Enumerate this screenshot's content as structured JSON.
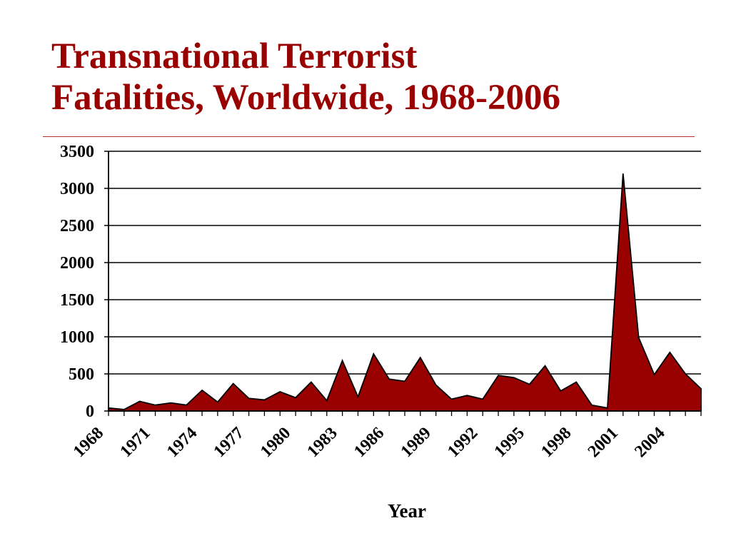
{
  "header": {
    "title_line1": "Transnational Terrorist",
    "title_line2": "Fatalities, Worldwide, 1968-2006"
  },
  "chart_data": {
    "type": "area",
    "title": "Transnational Terrorist Fatalities, Worldwide, 1968-2006",
    "xlabel": "Year",
    "ylabel": "",
    "ylim": [
      0,
      3500
    ],
    "y_ticks": [
      0,
      500,
      1000,
      1500,
      2000,
      2500,
      3000,
      3500
    ],
    "x_tick_labels": [
      "1968",
      "1971",
      "1974",
      "1977",
      "1980",
      "1983",
      "1986",
      "1989",
      "1992",
      "1995",
      "1998",
      "2001",
      "2004"
    ],
    "grid": "horizontal",
    "legend": "none",
    "fill_color": "#990000",
    "x": [
      1968,
      1969,
      1970,
      1971,
      1972,
      1973,
      1974,
      1975,
      1976,
      1977,
      1978,
      1979,
      1980,
      1981,
      1982,
      1983,
      1984,
      1985,
      1986,
      1987,
      1988,
      1989,
      1990,
      1991,
      1992,
      1993,
      1994,
      1995,
      1996,
      1997,
      1998,
      1999,
      2000,
      2001,
      2002,
      2003,
      2004,
      2005,
      2006
    ],
    "values": [
      40,
      20,
      130,
      80,
      110,
      80,
      280,
      120,
      370,
      170,
      150,
      260,
      180,
      390,
      140,
      680,
      190,
      770,
      430,
      400,
      720,
      350,
      160,
      210,
      160,
      480,
      450,
      360,
      610,
      270,
      390,
      80,
      40,
      3200,
      990,
      490,
      790,
      500,
      300
    ]
  }
}
